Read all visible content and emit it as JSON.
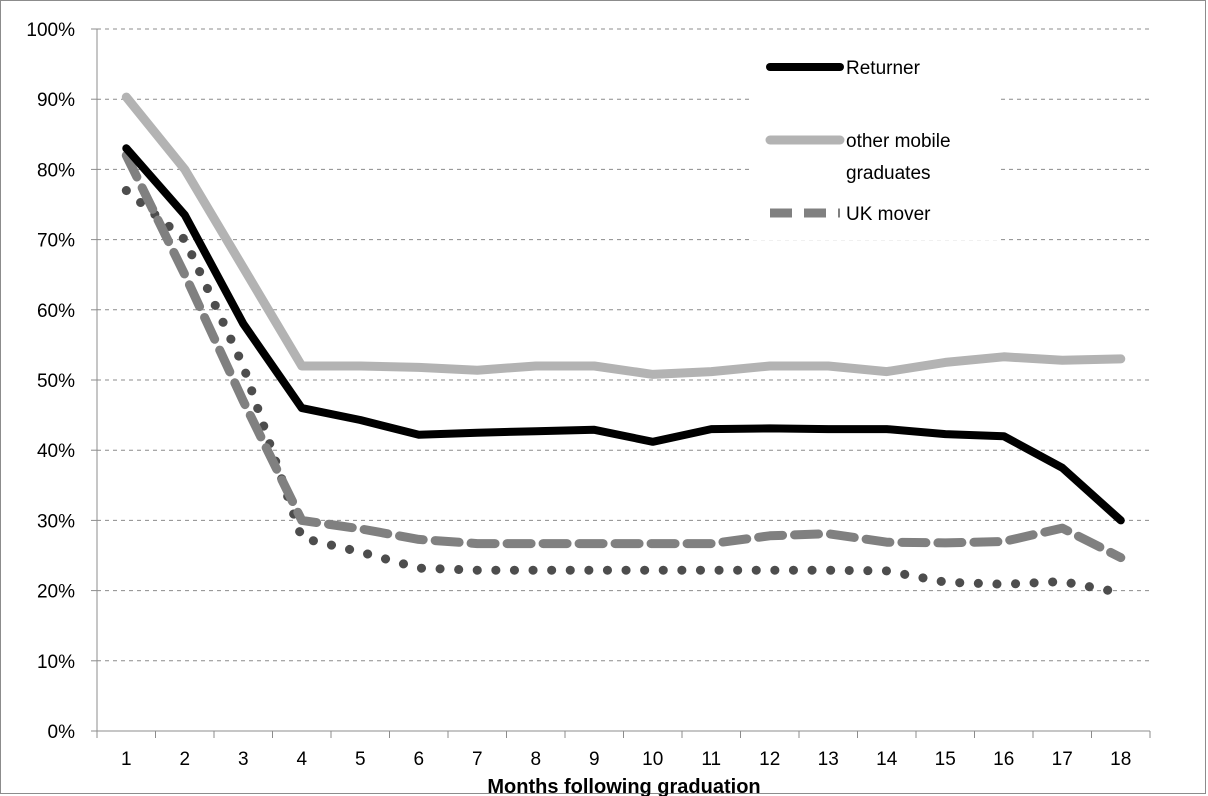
{
  "chart_data": {
    "type": "line",
    "xlabel": "Months following graduation",
    "ylabel": "",
    "categories": [
      "1",
      "2",
      "3",
      "4",
      "5",
      "6",
      "7",
      "8",
      "9",
      "10",
      "11",
      "12",
      "13",
      "14",
      "15",
      "16",
      "17",
      "18"
    ],
    "ylim": [
      0,
      100
    ],
    "yticks": [
      "0%",
      "10%",
      "20%",
      "30%",
      "40%",
      "50%",
      "60%",
      "70%",
      "80%",
      "90%",
      "100%"
    ],
    "grid": "horizontal dashed",
    "legend_position": "top-right",
    "series": [
      {
        "key": "returner",
        "name": "Returner",
        "color": "#000000",
        "style": "solid",
        "values": [
          83,
          73.5,
          58,
          46,
          44.3,
          42.2,
          42.5,
          42.7,
          42.9,
          41.2,
          43,
          43.1,
          43,
          43,
          42.3,
          42,
          37.5,
          30
        ]
      },
      {
        "key": "other_mobile",
        "name": "other mobile graduates",
        "name_lines": [
          "other mobile",
          "graduates"
        ],
        "color": "#b3b3b3",
        "style": "solid",
        "values": [
          90.3,
          80,
          66,
          52,
          52,
          51.8,
          51.4,
          52,
          52,
          50.8,
          51.2,
          52,
          52,
          51.2,
          52.5,
          53.3,
          52.8,
          53
        ]
      },
      {
        "key": "uk_mover",
        "name": "UK mover",
        "color": "#808080",
        "style": "dashed",
        "values": [
          82,
          65,
          47,
          30,
          28.8,
          27.3,
          26.7,
          26.7,
          26.7,
          26.7,
          26.7,
          27.8,
          28.1,
          26.9,
          26.8,
          27,
          28.9,
          24.7
        ]
      },
      {
        "key": "dotted",
        "color": "#4d4d4d",
        "style": "dotted",
        "values": [
          77,
          70,
          52,
          27.5,
          25.5,
          23.2,
          22.9,
          22.9,
          22.9,
          22.9,
          22.9,
          22.9,
          22.9,
          22.8,
          21.2,
          20.9,
          21.3,
          19.7
        ]
      }
    ]
  }
}
